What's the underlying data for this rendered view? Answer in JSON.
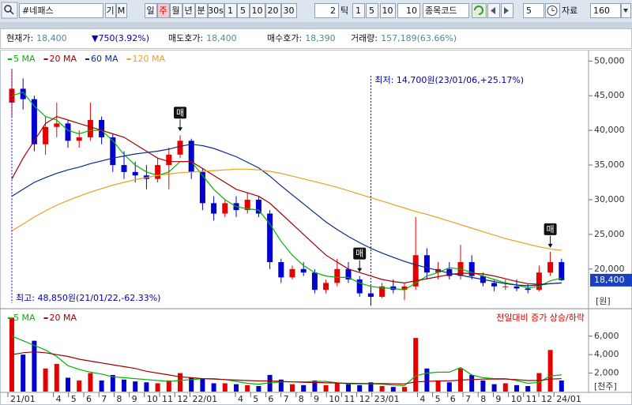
{
  "toolbar": {
    "search": "#네패스",
    "buttons": [
      "기",
      "M",
      "일",
      "주",
      "월",
      "년",
      "분",
      "30s",
      "1",
      "5",
      "10",
      "20",
      "30"
    ],
    "selected_button": 3,
    "tick_count": "2",
    "tick": "틱",
    "tick_buttons": [
      "1",
      "5",
      "10"
    ],
    "tick_input": "10",
    "code_label": "종목코드",
    "count_input": "5",
    "data_label": "자료",
    "data_count": "160"
  },
  "info": [
    {
      "label": "현재가:",
      "value": "18,400"
    },
    {
      "value": "▼750(3.92%)"
    },
    {
      "label": "매도호가:",
      "value": "18,400"
    },
    {
      "label": "매수호가:",
      "value": "18,390"
    },
    {
      "label": "거래량:",
      "value": "157,189(63.66%)"
    }
  ],
  "chart_data": [
    {
      "type": "candlestick",
      "up_color": "#e60000",
      "down_color": "#0000d0",
      "open": [
        44000,
        46000,
        44500,
        38000,
        40500,
        41000,
        38500,
        39000,
        41500,
        39000,
        35000,
        34000,
        33500,
        33000,
        35000,
        36500,
        38500,
        34000,
        29500,
        28000,
        29500,
        28500,
        30000,
        28000,
        21000,
        18800,
        20000,
        19500,
        17000,
        18000,
        20000,
        18500,
        16500,
        16000,
        17500,
        17000,
        17500,
        22000,
        19500,
        20000,
        19000,
        21000,
        19000,
        18000,
        17500,
        17500,
        17200,
        17000,
        19500,
        21000
      ],
      "high": [
        48850,
        47500,
        45000,
        42000,
        44000,
        41500,
        40000,
        44000,
        42000,
        39500,
        37000,
        35500,
        35000,
        36000,
        37500,
        39300,
        38800,
        34500,
        30500,
        30000,
        30500,
        31000,
        30500,
        28500,
        21500,
        20500,
        21000,
        20000,
        18500,
        21500,
        21000,
        19000,
        17500,
        18000,
        18500,
        18000,
        27500,
        23000,
        21000,
        21000,
        23500,
        22000,
        19500,
        18500,
        18500,
        18500,
        17800,
        20500,
        22500,
        21500
      ],
      "low": [
        42000,
        43000,
        37000,
        36500,
        39000,
        37500,
        37500,
        38500,
        38000,
        34000,
        33000,
        32500,
        31500,
        32500,
        31500,
        36000,
        33000,
        28500,
        27000,
        27500,
        27500,
        28000,
        27500,
        20000,
        18000,
        18500,
        19000,
        16500,
        16500,
        17500,
        18000,
        16000,
        14700,
        15800,
        16500,
        15500,
        17000,
        18500,
        18500,
        18500,
        18500,
        18500,
        17500,
        16800,
        17000,
        16800,
        16500,
        16800,
        19000,
        18300
      ],
      "close": [
        46000,
        44500,
        38000,
        40500,
        41000,
        38500,
        39000,
        41500,
        39000,
        35000,
        34000,
        33500,
        33000,
        35000,
        36500,
        38500,
        34000,
        29500,
        28000,
        29500,
        28500,
        30000,
        28000,
        21000,
        18800,
        20000,
        19500,
        17000,
        18000,
        20000,
        18500,
        16500,
        16000,
        17500,
        17000,
        17500,
        22000,
        19500,
        20000,
        19000,
        21000,
        19000,
        18000,
        17500,
        17500,
        17200,
        17000,
        19500,
        21000,
        18400
      ],
      "lines": [
        {
          "name": "5 MA",
          "color": "#00b400",
          "values": [
            45000,
            45500,
            43500,
            42000,
            41500,
            40000,
            39500,
            40000,
            40000,
            38500,
            36500,
            35000,
            34000,
            33500,
            34000,
            35500,
            35500,
            33500,
            31500,
            30000,
            29000,
            28700,
            28500,
            26500,
            24000,
            22000,
            20500,
            19500,
            19000,
            18800,
            18800,
            18000,
            17500,
            17300,
            17200,
            17000,
            18000,
            19000,
            19500,
            20200,
            20000,
            19500,
            19000,
            18500,
            18000,
            17700,
            17300,
            17500,
            18300,
            18700
          ]
        },
        {
          "name": "20 MA",
          "color": "#a00000",
          "values": [
            33000,
            36000,
            38500,
            41000,
            42000,
            41500,
            41000,
            40500,
            40000,
            39500,
            39000,
            38000,
            37000,
            36000,
            35500,
            35500,
            35500,
            34500,
            33500,
            32500,
            31500,
            31000,
            30500,
            29500,
            28000,
            26500,
            25000,
            23500,
            22000,
            21000,
            20000,
            19500,
            19000,
            18500,
            18200,
            18000,
            18300,
            18600,
            18900,
            19200,
            19400,
            19400,
            19300,
            19000,
            18600,
            18200,
            17900,
            17800,
            17900,
            18000
          ]
        },
        {
          "name": "60 MA",
          "color": "#0a2a8a",
          "values": [
            30500,
            31500,
            32500,
            33200,
            33800,
            34300,
            34700,
            35200,
            35600,
            36000,
            36300,
            36600,
            36800,
            37000,
            37300,
            37700,
            38000,
            37800,
            37400,
            36800,
            36200,
            35400,
            34600,
            33400,
            32000,
            30700,
            29400,
            28100,
            26800,
            25700,
            24700,
            23800,
            23000,
            22300,
            21700,
            21100,
            20600,
            20200,
            19800,
            19400,
            19100,
            18800,
            18500,
            18200,
            17900,
            17700,
            17600,
            17700,
            17900,
            18000
          ]
        },
        {
          "name": "120 MA",
          "color": "#e8a020",
          "values": [
            25500,
            26500,
            27500,
            28400,
            29200,
            29900,
            30500,
            31100,
            31600,
            32100,
            32500,
            32900,
            33200,
            33500,
            33700,
            33900,
            34000,
            34100,
            34200,
            34300,
            34400,
            34400,
            34300,
            34100,
            33800,
            33400,
            33000,
            32600,
            32200,
            31800,
            31300,
            30800,
            30300,
            29800,
            29300,
            28800,
            28300,
            27900,
            27400,
            26900,
            26400,
            25900,
            25400,
            24900,
            24400,
            24000,
            23600,
            23200,
            22900,
            22700
          ]
        }
      ],
      "ylim": [
        14400,
        51400
      ],
      "yticks": [
        {
          "value": 20000,
          "label": "20,000"
        },
        {
          "value": 25000,
          "label": "25,000"
        },
        {
          "value": 30000,
          "label": "30,000"
        },
        {
          "value": 35000,
          "label": "35,000"
        },
        {
          "value": 40000,
          "label": "40,000"
        },
        {
          "value": 45000,
          "label": "45,000"
        },
        {
          "value": 50000,
          "label": "50,000"
        }
      ],
      "y_unit": "[원]",
      "high_note": "최고: 48,850원(21/01/22,-62.33%)",
      "low_note": "최저: 14,700원(23/01/06,+25.17%)",
      "price_tag": "18,400",
      "signals": [
        "매",
        "매",
        "매"
      ]
    },
    {
      "type": "bar",
      "up_color": "#e60000",
      "down_color": "#0000d0",
      "values": [
        8000,
        4000,
        5500,
        2500,
        3000,
        1500,
        1200,
        2000,
        1200,
        1800,
        1300,
        1100,
        1000,
        900,
        1200,
        2000,
        1500,
        1400,
        900,
        900,
        800,
        700,
        600,
        1800,
        1300,
        800,
        700,
        1200,
        700,
        900,
        800,
        700,
        1000,
        600,
        500,
        500,
        5800,
        2500,
        1200,
        1000,
        2500,
        1800,
        1200,
        800,
        900,
        700,
        600,
        2000,
        4500,
        1200
      ],
      "lines": [
        {
          "name": "5 MA",
          "color": "#00b400",
          "values": [
            6000,
            5500,
            5000,
            4500,
            3800,
            2800,
            2400,
            2100,
            1900,
            1600,
            1500,
            1400,
            1300,
            1200,
            1100,
            1200,
            1300,
            1400,
            1400,
            1300,
            1100,
            900,
            800,
            950,
            1050,
            1050,
            1050,
            1100,
            1100,
            950,
            850,
            850,
            850,
            800,
            700,
            650,
            1700,
            2000,
            2100,
            2100,
            2600,
            1800,
            1500,
            1400,
            1400,
            1200,
            900,
            1000,
            1700,
            1800
          ]
        },
        {
          "name": "20 MA",
          "color": "#a00000",
          "values": [
            4000,
            4200,
            4300,
            4200,
            4000,
            3800,
            3500,
            3300,
            3100,
            2900,
            2700,
            2500,
            2200,
            2000,
            1800,
            1600,
            1500,
            1400,
            1350,
            1300,
            1250,
            1200,
            1150,
            1150,
            1100,
            1050,
            1000,
            980,
            950,
            930,
            900,
            880,
            870,
            860,
            850,
            830,
            1050,
            1100,
            1150,
            1150,
            1250,
            1300,
            1350,
            1350,
            1350,
            1300,
            1200,
            1200,
            1350,
            1400
          ]
        }
      ],
      "ylim": [
        0,
        8800
      ],
      "yticks": [
        {
          "value": 2000,
          "label": "2,000"
        },
        {
          "value": 4000,
          "label": "4,000"
        },
        {
          "value": 6000,
          "label": "6,000"
        }
      ],
      "y_unit": "[천주]",
      "note": "전일대비 증가 상승/하락",
      "x_labels": [
        "21/01",
        "4",
        "5",
        "6",
        "7",
        "8",
        "9",
        "10",
        "11",
        "12",
        "22/01",
        "4",
        "5",
        "6",
        "7",
        "8",
        "9",
        "10",
        "11",
        "12",
        "23/01",
        "4",
        "5",
        "6",
        "7",
        "8",
        "9",
        "10",
        "11",
        "12",
        "24/01"
      ]
    }
  ]
}
